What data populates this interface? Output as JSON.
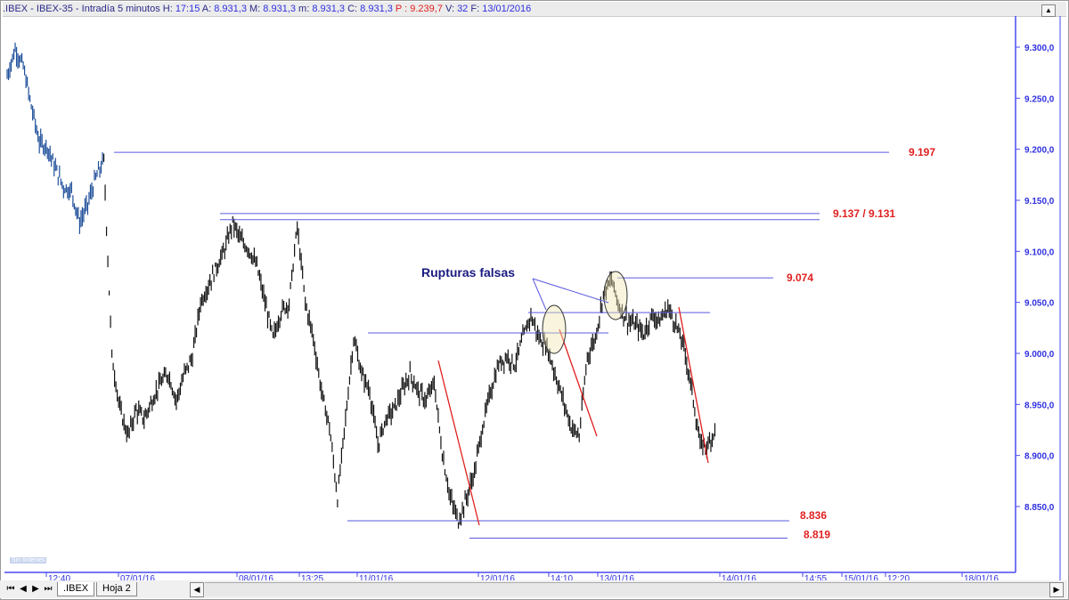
{
  "header": {
    "prefix": ".IBEX - IBEX-35 - Intradía 5 minutos ",
    "h_label": "H: ",
    "h_value": "17:15",
    "a_label": " A: ",
    "a_value": "8.931,3",
    "m_label": " M: ",
    "m_value": "8.931,3",
    "mm_label": " m: ",
    "mm_value": "8.931,3",
    "c_label": " C: ",
    "c_value": "8.931,3",
    "p_text": " P : 9.239,7",
    "v_label": " V: ",
    "v_value": "32",
    "f_label": " F: ",
    "f_value": "13/01/2016"
  },
  "status_badge": "Sin órdenes",
  "tabs": [
    ".IBEX",
    "Hoja 2"
  ],
  "nav": {
    "first": "⏮",
    "prev": "◀",
    "next": "▶",
    "last": "⏭"
  },
  "chart_data": {
    "type": "line",
    "title": "",
    "colors": {
      "axis": "#4a4af0",
      "levels": "#5a5ae0",
      "trend": "#e02020",
      "label": "#e02020",
      "annotation": "#1a1a80",
      "up_series": "#1f4f9a",
      "down_series": "#111111"
    },
    "ylim": [
      8800,
      9330
    ],
    "y_ticks": [
      "9.300,0",
      "9.250,0",
      "9.200,0",
      "9.150,0",
      "9.100,0",
      "9.050,0",
      "9.000,0",
      "8.950,0",
      "8.900,0",
      "8.850,0"
    ],
    "y_tick_values": [
      9300,
      9250,
      9200,
      9150,
      9100,
      9050,
      9000,
      8950,
      8900,
      8850
    ],
    "x_ticks": [
      "12:40",
      "07/01/16",
      "08/01/16",
      "13:25",
      "11/01/16",
      "12/01/16",
      "14:10",
      "13/01/16",
      "14/01/16",
      "14:55",
      "15/01/16",
      "12:20",
      "18/01/16"
    ],
    "series": [
      {
        "color": "#1f4f9a",
        "values": [
          9272,
          9298,
          9281,
          9242,
          9207,
          9202,
          9181,
          9163,
          9159,
          9128,
          9146,
          9172,
          9189
        ]
      },
      {
        "color": "#111111",
        "values": [
          8997,
          8945,
          8919,
          8945,
          8936,
          8954,
          8971,
          8980,
          8954,
          8980,
          8997,
          9050,
          9067,
          9085,
          9102,
          9128,
          9111,
          9102,
          9085,
          9050,
          9015,
          9041,
          9050,
          9124,
          9050,
          9015,
          8963,
          8928,
          8858,
          8936,
          9015,
          8980,
          8963,
          8910,
          8936,
          8945,
          8963,
          8980,
          8963,
          8954,
          8971,
          8902,
          8858,
          8836,
          8858,
          8884,
          8928,
          8963,
          8989,
          8997,
          8989,
          9015,
          9037,
          9015,
          9006,
          8980,
          8954,
          8928,
          8919
        ]
      },
      {
        "color": "#111111",
        "values": [
          8997,
          9015,
          9058,
          9072,
          9045,
          9032,
          9028,
          9019,
          9037,
          9032,
          9045,
          9028,
          9006,
          8963,
          8910,
          8910,
          8928
        ]
      }
    ],
    "levels": [
      {
        "price": 9197,
        "label": "9.197"
      },
      {
        "price": 9137,
        "label": "9.137 / 9.131"
      },
      {
        "price": 9131,
        "label": ""
      },
      {
        "price": 9074,
        "label": "9.074"
      },
      {
        "price": 9040,
        "label": ""
      },
      {
        "price": 9020,
        "label": ""
      },
      {
        "price": 8836,
        "label": "8.836"
      },
      {
        "price": 8819,
        "label": "8.819"
      }
    ],
    "annotation": "Rupturas falsas"
  }
}
